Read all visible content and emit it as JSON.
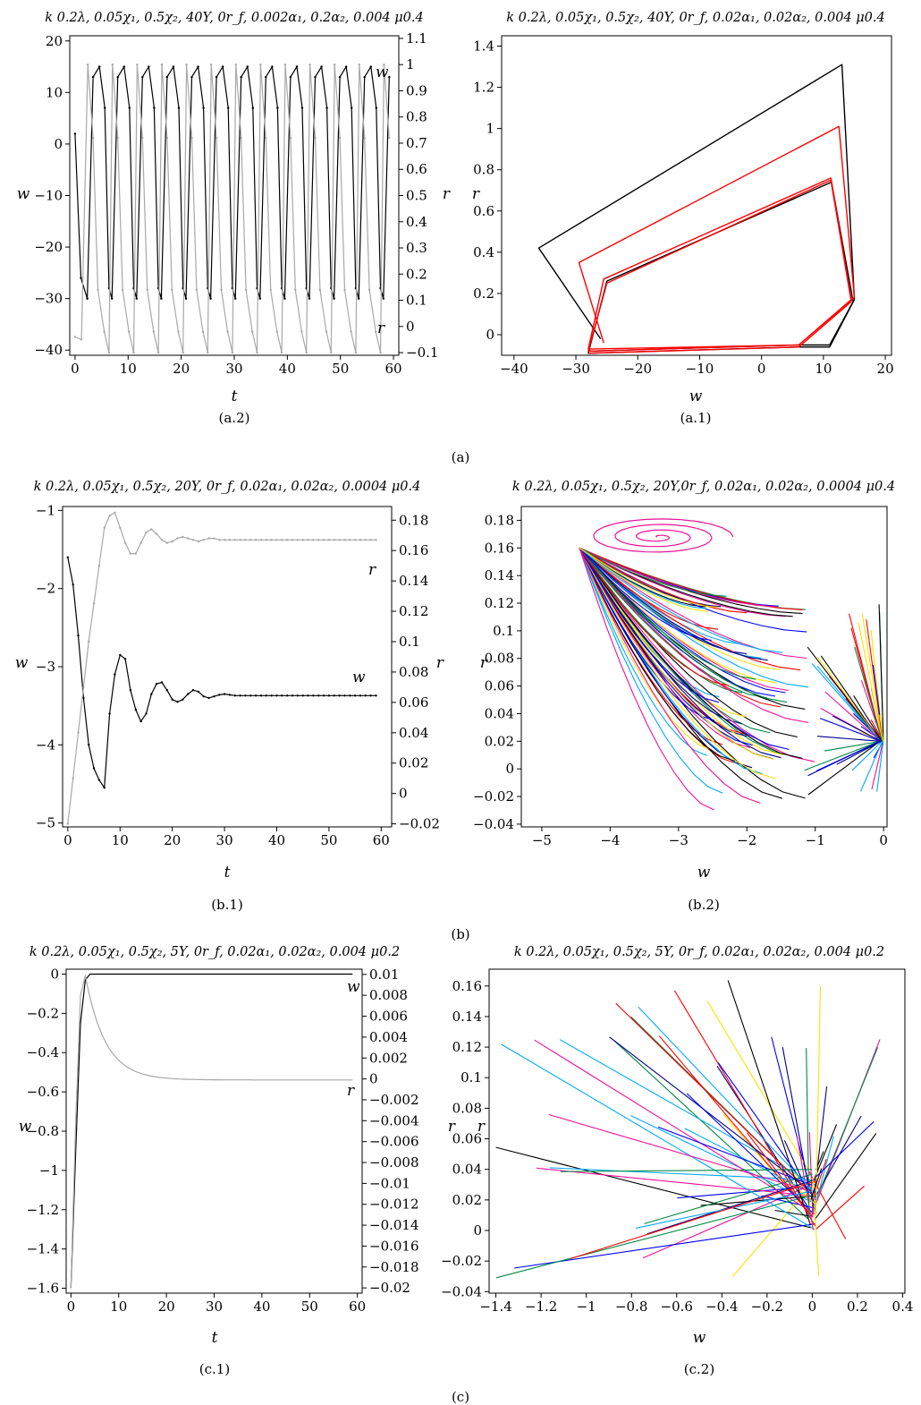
{
  "figure": {
    "group_captions": [
      "(a)",
      "(b)",
      "(c)"
    ]
  },
  "chart_data": [
    {
      "id": "a2",
      "type": "line",
      "caption": "(a.2)",
      "title": "k 0.2λ, 0.05χ₁, 0.5χ₂, 40Y, 0r_f, 0.002α₁, 0.2α₂, 0.004 μ0.4",
      "xlabel": "t",
      "ylabel": "w",
      "y2label": "r",
      "xlim": [
        -1,
        61
      ],
      "ylim": [
        -41,
        21
      ],
      "y2lim": [
        -0.11,
        1.11
      ],
      "xticks": [
        0,
        10,
        20,
        30,
        40,
        50,
        60
      ],
      "yticks": [
        -40,
        -30,
        -20,
        -10,
        0,
        10,
        20
      ],
      "y2ticks": [
        -0.1,
        0,
        0.1,
        0.2,
        0.3,
        0.4,
        0.5,
        0.6,
        0.7,
        0.8,
        0.9,
        1,
        1.1
      ],
      "series": [
        {
          "name": "w",
          "axis": "left",
          "color": "#000000",
          "cycle": {
            "period": 4.65,
            "start": 2.3,
            "t_end": 59.3,
            "phase_t": [
              0,
              1.1,
              2.3,
              3.3,
              4.1
            ],
            "phase_v": [
              -30,
              13,
              15,
              7,
              -28
            ]
          },
          "initial": [
            [
              0,
              2
            ],
            [
              1.1,
              -26
            ],
            [
              2.3,
              -30
            ]
          ]
        },
        {
          "name": "r",
          "axis": "right",
          "color": "#a8a8a8",
          "cycle": {
            "period": 4.65,
            "start": 2.4,
            "t_end": 59.3,
            "phase_t": [
              0,
              1.0,
              1.9,
              3.1,
              4.0
            ],
            "phase_v": [
              1.0,
              0.72,
              0.14,
              -0.02,
              -0.1
            ]
          },
          "initial": [
            [
              0,
              -0.04
            ],
            [
              1.2,
              -0.05
            ]
          ]
        }
      ],
      "annotations": [
        {
          "text": "w",
          "series": "w"
        },
        {
          "text": "r",
          "series": "r"
        }
      ]
    },
    {
      "id": "a1",
      "type": "line",
      "caption": "(a.1)",
      "title": "k 0.2λ, 0.05χ₁, 0.5χ₂, 40Y, 0r_f, 0.02α₁, 0.02α₂, 0.004 μ0.4",
      "xlabel": "w",
      "ylabel": "r",
      "xlim": [
        -42,
        21
      ],
      "ylim": [
        -0.1,
        1.45
      ],
      "xticks": [
        -40,
        -30,
        -20,
        -10,
        0,
        10,
        20
      ],
      "yticks": [
        0,
        0.2,
        0.4,
        0.6,
        0.8,
        1,
        1.2,
        1.4
      ],
      "series": [
        {
          "color": "#000000",
          "x": [
            -26,
            -36,
            13,
            15,
            11,
            5.5,
            -28,
            -25,
            11.3,
            14.8,
            11,
            6,
            -28
          ],
          "y": [
            -0.02,
            0.42,
            1.31,
            0.17,
            -0.06,
            -0.06,
            -0.09,
            0.26,
            0.74,
            0.16,
            -0.05,
            -0.05,
            -0.08
          ]
        },
        {
          "color": "#ff0000",
          "x": [
            -25.5,
            -29.5,
            12.5,
            15,
            6,
            -28,
            -25.5,
            11.2,
            14.5,
            6,
            -28,
            -25,
            11.2,
            14.5,
            6,
            -28
          ],
          "y": [
            -0.04,
            0.35,
            1.01,
            0.18,
            -0.05,
            -0.07,
            0.27,
            0.76,
            0.17,
            -0.05,
            -0.08,
            0.25,
            0.75,
            0.16,
            -0.06,
            -0.09
          ]
        }
      ]
    },
    {
      "id": "b1",
      "type": "line",
      "caption": "(b.1)",
      "title": "k 0.2λ, 0.05χ₁, 0.5χ₂, 20Y, 0r_f, 0.02α₁, 0.02α₂, 0.0004 μ0.4",
      "xlabel": "t",
      "ylabel": "w",
      "y2label": "r",
      "xlim": [
        -1,
        62
      ],
      "ylim": [
        -5.05,
        -0.95
      ],
      "y2lim": [
        -0.022,
        0.189
      ],
      "xticks": [
        0,
        10,
        20,
        30,
        40,
        50,
        60
      ],
      "yticks": [
        -5,
        -4,
        -3,
        -2,
        -1
      ],
      "y2ticks": [
        -0.02,
        0,
        0.02,
        0.04,
        0.06,
        0.08,
        0.1,
        0.12,
        0.14,
        0.16,
        0.18
      ],
      "series": [
        {
          "name": "w",
          "axis": "left",
          "color": "#000000",
          "x": [
            0,
            1,
            2,
            3,
            4,
            5,
            6,
            7,
            8,
            9,
            10,
            11,
            12,
            13,
            14,
            15,
            16,
            17,
            18,
            19,
            20,
            21,
            22,
            23,
            24,
            25,
            26,
            27,
            28,
            29,
            30,
            31,
            32,
            33,
            34,
            35,
            36,
            37,
            38,
            39,
            40,
            41,
            42,
            43,
            44,
            45,
            46,
            47,
            48,
            49,
            50,
            51,
            52,
            53,
            54,
            55,
            56,
            57,
            58,
            59
          ],
          "y": [
            -1.6,
            -1.95,
            -2.6,
            -3.4,
            -4.0,
            -4.3,
            -4.45,
            -4.55,
            -3.6,
            -3.1,
            -2.85,
            -2.9,
            -3.3,
            -3.55,
            -3.7,
            -3.6,
            -3.35,
            -3.22,
            -3.2,
            -3.3,
            -3.42,
            -3.45,
            -3.42,
            -3.35,
            -3.3,
            -3.32,
            -3.38,
            -3.4,
            -3.38,
            -3.36,
            -3.35,
            -3.36,
            -3.37,
            -3.37,
            -3.37,
            -3.37,
            -3.37,
            -3.37,
            -3.37,
            -3.37,
            -3.37,
            -3.37,
            -3.37,
            -3.37,
            -3.37,
            -3.37,
            -3.37,
            -3.37,
            -3.37,
            -3.37,
            -3.37,
            -3.37,
            -3.37,
            -3.37,
            -3.37,
            -3.37,
            -3.37,
            -3.37,
            -3.37,
            -3.37
          ]
        },
        {
          "name": "r",
          "axis": "right",
          "color": "#a8a8a8",
          "x": [
            0,
            1,
            2,
            3,
            4,
            5,
            6,
            7,
            8,
            9,
            10,
            11,
            12,
            13,
            14,
            15,
            16,
            17,
            18,
            19,
            20,
            21,
            22,
            23,
            24,
            25,
            26,
            27,
            28,
            29,
            30,
            31,
            32,
            33,
            34,
            35,
            36,
            37,
            38,
            39,
            40,
            41,
            42,
            43,
            44,
            45,
            46,
            47,
            48,
            49,
            50,
            51,
            52,
            53,
            54,
            55,
            56,
            57,
            58,
            59
          ],
          "y": [
            -0.02,
            0.01,
            0.04,
            0.07,
            0.1,
            0.125,
            0.15,
            0.175,
            0.183,
            0.185,
            0.175,
            0.165,
            0.158,
            0.158,
            0.165,
            0.172,
            0.174,
            0.171,
            0.167,
            0.165,
            0.166,
            0.168,
            0.169,
            0.168,
            0.167,
            0.166,
            0.167,
            0.168,
            0.168,
            0.167,
            0.167,
            0.167,
            0.167,
            0.167,
            0.167,
            0.167,
            0.167,
            0.167,
            0.167,
            0.167,
            0.167,
            0.167,
            0.167,
            0.167,
            0.167,
            0.167,
            0.167,
            0.167,
            0.167,
            0.167,
            0.167,
            0.167,
            0.167,
            0.167,
            0.167,
            0.167,
            0.167,
            0.167,
            0.167,
            0.167
          ]
        }
      ],
      "annotations": [
        {
          "text": "r",
          "series": "r"
        },
        {
          "text": "w",
          "series": "w"
        }
      ]
    },
    {
      "id": "b2",
      "type": "line",
      "caption": "(b.2)",
      "title": "k 0.2λ, 0.05χ₁, 0.5χ₂, 20Y,0r_f, 0.02α₁, 0.02α₂, 0.0004 μ0.4",
      "xlabel": "w",
      "ylabel": "r",
      "xlim": [
        -5.3,
        0.05
      ],
      "ylim": [
        -0.042,
        0.19
      ],
      "xticks": [
        -5,
        -4,
        -3,
        -2,
        -1,
        0
      ],
      "yticks": [
        -0.04,
        -0.02,
        0,
        0.02,
        0.04,
        0.06,
        0.08,
        0.1,
        0.12,
        0.14,
        0.16,
        0.18
      ],
      "series": [],
      "palette": [
        "#000000",
        "#ff0000",
        "#0000ff",
        "#00aaff",
        "#ee1199",
        "#ffe000",
        "#008844",
        "#000088"
      ]
    },
    {
      "id": "c1",
      "type": "line",
      "caption": "(c.1)",
      "title": "k 0.2λ, 0.05χ₁, 0.5χ₂, 5Y, 0r_f, 0.02α₁, 0.02α₂, 0.004 μ0.2",
      "xlabel": "t",
      "ylabel": "w",
      "y2label": "r",
      "xlim": [
        -1,
        61
      ],
      "ylim": [
        -1.625,
        0.025
      ],
      "y2lim": [
        -0.0205,
        0.0105
      ],
      "xticks": [
        0,
        10,
        20,
        30,
        40,
        50,
        60
      ],
      "yticks": [
        -1.6,
        -1.4,
        -1.2,
        -1,
        -0.8,
        -0.6,
        -0.4,
        -0.2,
        0
      ],
      "y2ticks": [
        -0.02,
        -0.018,
        -0.016,
        -0.014,
        -0.012,
        -0.01,
        -0.008,
        -0.006,
        -0.004,
        -0.002,
        0,
        0.002,
        0.004,
        0.006,
        0.008,
        0.01
      ],
      "series": [
        {
          "name": "w",
          "axis": "left",
          "color": "#000000",
          "x": [
            0,
            1,
            2,
            3,
            4,
            5,
            59
          ],
          "y": [
            -1.6,
            -0.9,
            -0.25,
            -0.03,
            0,
            0,
            0
          ]
        },
        {
          "name": "r",
          "axis": "right",
          "color": "#a8a8a8",
          "decay": {
            "t0": 3,
            "tau": 4.2,
            "v_peak": 0.0099,
            "v_end": -0.0001,
            "t_end": 59
          }
        }
      ],
      "annotations": [
        {
          "text": "w",
          "series": "w"
        },
        {
          "text": "r",
          "series": "r"
        }
      ]
    },
    {
      "id": "c2",
      "type": "line",
      "caption": "(c.2)",
      "title": "k 0.2λ, 0.05χ₁, 0.5χ₂, 5Y, 0r_f, 0.02α₁, 0.02α₂, 0.004 μ0.2",
      "xlabel": "w",
      "ylabel": "r",
      "xlim": [
        -1.43,
        0.41
      ],
      "ylim": [
        -0.041,
        0.171
      ],
      "xticks": [
        -1.4,
        -1.2,
        -1,
        -0.8,
        -0.6,
        -0.4,
        -0.2,
        0,
        0.2,
        0.4
      ],
      "yticks": [
        -0.04,
        -0.02,
        0,
        0.02,
        0.04,
        0.06,
        0.08,
        0.1,
        0.12,
        0.14,
        0.16
      ],
      "series": [],
      "palette": [
        "#000000",
        "#ff0000",
        "#0000ff",
        "#00aaff",
        "#ee1199",
        "#ffe000",
        "#008844",
        "#000088"
      ]
    }
  ]
}
